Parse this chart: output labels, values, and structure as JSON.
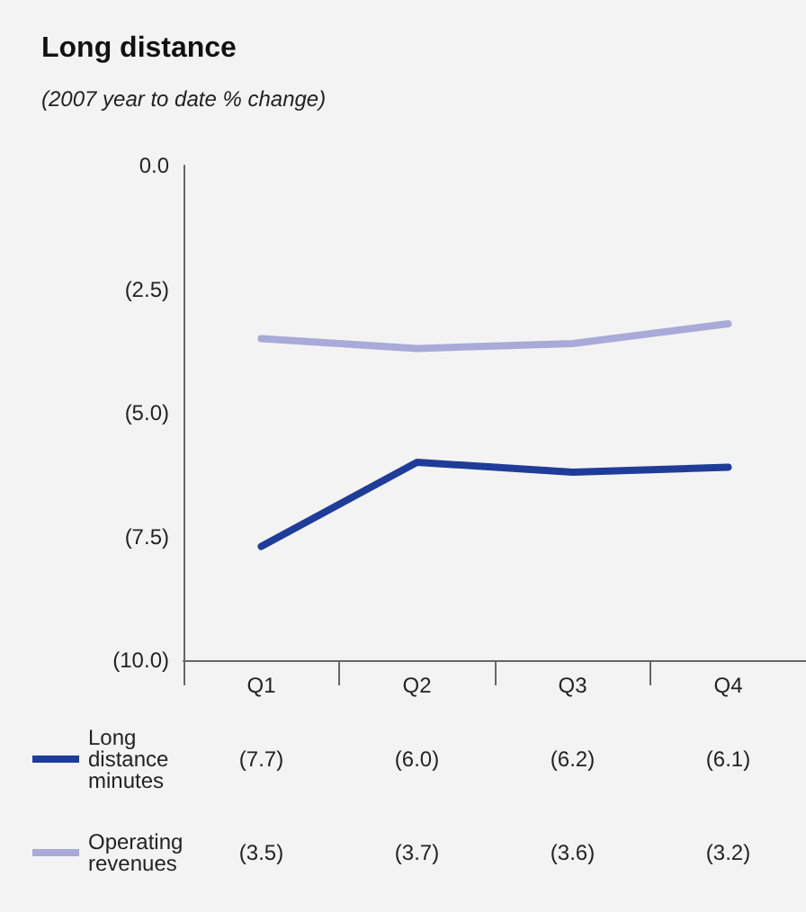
{
  "chart_data": {
    "type": "line",
    "title": "Long distance",
    "subtitle": "(2007 year to date % change)",
    "categories": [
      "Q1",
      "Q2",
      "Q3",
      "Q4"
    ],
    "series": [
      {
        "name": "Long distance minutes",
        "color": "#1f3c98",
        "values": [
          -7.7,
          -6.0,
          -6.2,
          -6.1
        ],
        "value_labels": [
          "(7.7)",
          "(6.0)",
          "(6.2)",
          "(6.1)"
        ]
      },
      {
        "name": "Operating revenues",
        "color": "#a8aad8",
        "values": [
          -3.5,
          -3.7,
          -3.6,
          -3.2
        ],
        "value_labels": [
          "(3.5)",
          "(3.7)",
          "(3.6)",
          "(3.2)"
        ]
      }
    ],
    "ylim": [
      -10,
      0
    ],
    "yticks": [
      {
        "value": 0,
        "label": "0.0"
      },
      {
        "value": -2.5,
        "label": "(2.5)"
      },
      {
        "value": -5,
        "label": "(5.0)"
      },
      {
        "value": -7.5,
        "label": "(7.5)"
      },
      {
        "value": -10,
        "label": "(10.0)"
      }
    ],
    "grid": false,
    "legend": "bottom",
    "marker": "none",
    "line_style": "solid"
  }
}
